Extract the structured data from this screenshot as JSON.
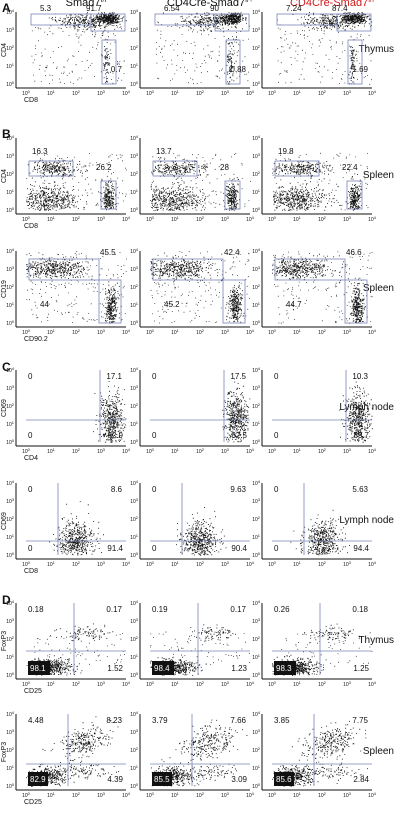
{
  "figure": {
    "columns": [
      {
        "label": "Smad7",
        "sup": "f/f",
        "color": "#111111"
      },
      {
        "label": "CD4Cre-Smad7",
        "sup": "f/+",
        "color": "#111111"
      },
      {
        "label": "CD4Cre-Smad7",
        "sup": "f/f",
        "color": "#d01818"
      }
    ],
    "sections": [
      {
        "letter": "A"
      },
      {
        "letter": "B"
      },
      {
        "letter": "C"
      },
      {
        "letter": "D"
      }
    ],
    "tick_labels": [
      "10",
      "10",
      "10",
      "10",
      "10"
    ],
    "tick_exps": [
      "0",
      "1",
      "2",
      "3",
      "4"
    ],
    "rows": [
      {
        "section": "A",
        "tissue": "Thymus",
        "xlabel": "CD8",
        "ylabel": "CD4",
        "type": "thymus-cd4cd8",
        "values": [
          [
            "5.3",
            "91.7",
            "0.7"
          ],
          [
            "6.54",
            "90",
            "0.88"
          ],
          [
            "7.24",
            "87.4",
            "1.69"
          ]
        ]
      },
      {
        "section": "B",
        "tissue": "Spleen",
        "xlabel": "CD8",
        "ylabel": "CD4",
        "type": "spleen-cd4cd8",
        "values": [
          [
            "16.3",
            "26.2"
          ],
          [
            "13.7",
            "28"
          ],
          [
            "19.8",
            "22.4"
          ]
        ]
      },
      {
        "section": "",
        "tissue": "Spleen",
        "xlabel": "CD90.2",
        "ylabel": "CD19",
        "type": "spleen-cd19",
        "values": [
          [
            "45.5",
            "44"
          ],
          [
            "42.4",
            "45.2"
          ],
          [
            "46.6",
            "44.7"
          ]
        ]
      },
      {
        "section": "C",
        "tissue": "Lymph node",
        "xlabel": "CD4",
        "ylabel": "CD69",
        "type": "ln-cd4",
        "values": [
          [
            "0",
            "17.1",
            "0",
            "82.9"
          ],
          [
            "0",
            "17.5",
            "0",
            "82.5"
          ],
          [
            "0",
            "10.3",
            "0",
            "89.7"
          ]
        ]
      },
      {
        "section": "",
        "tissue": "Lymph node",
        "xlabel": "CD8",
        "ylabel": "CD69",
        "type": "ln-cd8",
        "values": [
          [
            "0",
            "8.6",
            "0",
            "91.4"
          ],
          [
            "0",
            "9.63",
            "0",
            "90.4"
          ],
          [
            "0",
            "5.63",
            "0",
            "94.4"
          ]
        ]
      },
      {
        "section": "D",
        "tissue": "Thymus",
        "xlabel": "CD25",
        "ylabel": "FoxP3",
        "type": "foxp3-thymus",
        "values": [
          [
            "0.18",
            "0.17",
            "98.1",
            "1.52"
          ],
          [
            "0.19",
            "0.17",
            "98.4",
            "1.23"
          ],
          [
            "0.26",
            "0.18",
            "98.3",
            "1.25"
          ]
        ]
      },
      {
        "section": "",
        "tissue": "Spleen",
        "xlabel": "CD25",
        "ylabel": "FoxP3",
        "type": "foxp3-spleen",
        "values": [
          [
            "4.48",
            "8.23",
            "82.9",
            "4.39"
          ],
          [
            "3.79",
            "7.66",
            "85.5",
            "3.09"
          ],
          [
            "3.85",
            "7.75",
            "85.6",
            "2.84"
          ]
        ]
      }
    ]
  },
  "colors": {
    "gate": "#7a84b8",
    "dots": "#111111",
    "highlight": "#d01818"
  }
}
